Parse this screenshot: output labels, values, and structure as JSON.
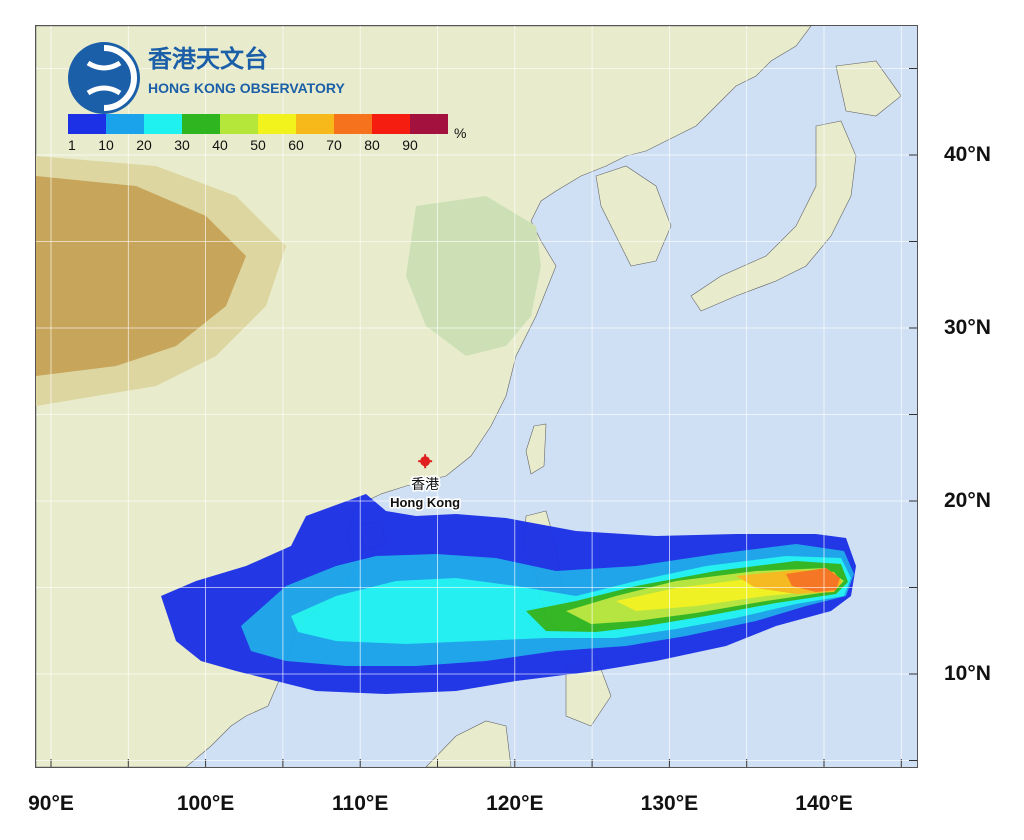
{
  "brand": {
    "name_zh": "香港天文台",
    "name_en": "HONG KONG OBSERVATORY",
    "colors": {
      "logo_blue": "#1b5fa8",
      "text_blue": "#1b5fa8"
    }
  },
  "legend": {
    "unit": "%",
    "ticks": [
      "1",
      "10",
      "20",
      "30",
      "40",
      "50",
      "60",
      "70",
      "80",
      "90"
    ],
    "colors": [
      "#1c31e6",
      "#1aa3ea",
      "#1ff0f0",
      "#2fb51f",
      "#b5e63a",
      "#f2f21c",
      "#f7b81a",
      "#f7721c",
      "#f51c10",
      "#a3123f"
    ]
  },
  "axes": {
    "lon_labels": [
      "90°E",
      "100°E",
      "110°E",
      "120°E",
      "130°E",
      "140°E"
    ],
    "lat_labels": [
      "40°N",
      "30°N",
      "20°N",
      "10°N"
    ],
    "lon_range": [
      89,
      146
    ],
    "lat_range": [
      5,
      47
    ]
  },
  "marker": {
    "label_zh": "香港",
    "label_en": "Hong Kong",
    "lon": 114.2,
    "lat": 22.3,
    "color": "#e02020"
  },
  "probability_bands": [
    {
      "min_pct": 1,
      "color": "#1c31e6"
    },
    {
      "min_pct": 10,
      "color": "#1aa3ea"
    },
    {
      "min_pct": 20,
      "color": "#1ff0f0"
    },
    {
      "min_pct": 30,
      "color": "#2fb51f"
    },
    {
      "min_pct": 40,
      "color": "#b5e63a"
    },
    {
      "min_pct": 50,
      "color": "#f2f21c"
    },
    {
      "min_pct": 60,
      "color": "#f7b81a"
    },
    {
      "min_pct": 70,
      "color": "#f7721c"
    }
  ],
  "map_colors": {
    "sea": "#cfe0f5",
    "land_low": "#e8eccc",
    "land_green": "#cde0b5",
    "land_mid": "#ddd6a0",
    "land_high": "#c7a55a",
    "grid": "#ffffff"
  }
}
